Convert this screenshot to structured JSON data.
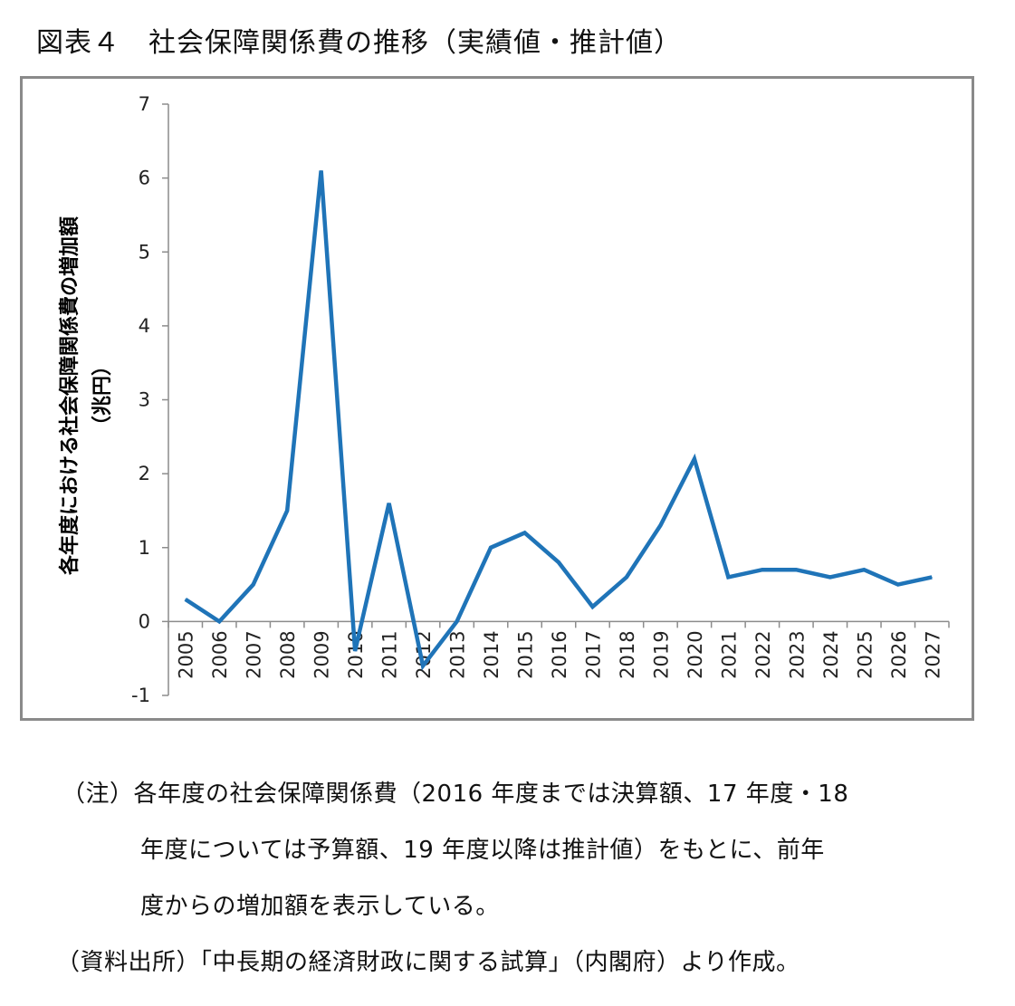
{
  "figure": {
    "title": "図表４　社会保障関係費の推移（実績値・推計値）"
  },
  "chart_data": {
    "type": "line",
    "x": [
      "2005",
      "2006",
      "2007",
      "2008",
      "2009",
      "2010",
      "2011",
      "2012",
      "2013",
      "2014",
      "2015",
      "2016",
      "2017",
      "2018",
      "2019",
      "2020",
      "2021",
      "2022",
      "2023",
      "2024",
      "2025",
      "2026",
      "2027"
    ],
    "series": [
      {
        "values": [
          0.3,
          0.0,
          0.5,
          1.5,
          6.1,
          -0.4,
          1.6,
          -0.6,
          0.0,
          1.0,
          1.2,
          0.8,
          0.2,
          0.6,
          1.3,
          2.2,
          0.6,
          0.7,
          0.7,
          0.6,
          0.7,
          0.5,
          0.6
        ]
      }
    ],
    "ylabel_line1": "各年度における社会保障関係費の増加額",
    "ylabel_line2": "（兆円）",
    "ylim": [
      -1,
      7
    ],
    "yticks": [
      -1,
      0,
      1,
      2,
      3,
      4,
      5,
      6,
      7
    ],
    "grid": false,
    "line_color": "#1f74b8"
  },
  "notes": {
    "line1": "（注）各年度の社会保障関係費（2016 年度までは決算額、17 年度・18",
    "line2": "年度については予算額、19 年度以降は推計値）をもとに、前年",
    "line3": "度からの増加額を表示している。",
    "source": "（資料出所）「中長期の経済財政に関する試算」（内閣府）より作成。"
  }
}
